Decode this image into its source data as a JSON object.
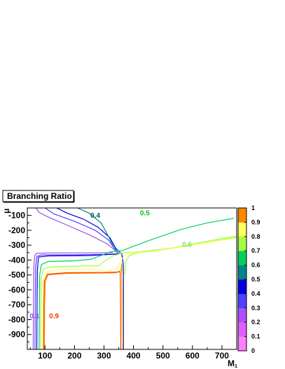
{
  "chart_data": {
    "type": "contour",
    "title": "Branching Ratio",
    "xlabel": "M",
    "xlabel_sub": "1",
    "ylabel": "μ",
    "xlim": [
      40,
      750
    ],
    "ylim": [
      -1000,
      -50
    ],
    "xticks": [
      100,
      200,
      300,
      400,
      500,
      600,
      700
    ],
    "yticks": [
      -100,
      -200,
      -300,
      -400,
      -500,
      -600,
      -700,
      -800,
      -900
    ],
    "zlim": [
      0,
      1
    ],
    "color_scale": [
      {
        "value": 0.0,
        "color": "#ff80ff"
      },
      {
        "value": 0.1,
        "color": "#e060ff"
      },
      {
        "value": 0.2,
        "color": "#b050ff"
      },
      {
        "value": 0.3,
        "color": "#5040ff"
      },
      {
        "value": 0.4,
        "color": "#0000e0"
      },
      {
        "value": 0.5,
        "color": "#008888"
      },
      {
        "value": 0.6,
        "color": "#00d060"
      },
      {
        "value": 0.7,
        "color": "#a0ff40"
      },
      {
        "value": 0.8,
        "color": "#ffff60"
      },
      {
        "value": 0.9,
        "color": "#ff8800"
      }
    ],
    "scale_labels": [
      "0",
      "0.1",
      "0.2",
      "0.3",
      "0.4",
      "0.5",
      "0.6",
      "0.7",
      "0.8",
      "0.9",
      "1"
    ],
    "contours": [
      {
        "level": "0.1",
        "color": "#a050e0",
        "points": [
          [
            60,
            -1000
          ],
          [
            61,
            -700
          ],
          [
            62,
            -450
          ],
          [
            65,
            -370
          ],
          [
            72,
            -355
          ],
          [
            110,
            -352
          ],
          [
            180,
            -352
          ],
          [
            260,
            -352
          ],
          [
            330,
            -350
          ]
        ]
      },
      {
        "level": "0.1b",
        "color": "#a050e0",
        "points": [
          [
            70,
            -50
          ],
          [
            80,
            -80
          ],
          [
            110,
            -110
          ],
          [
            180,
            -170
          ],
          [
            250,
            -230
          ],
          [
            310,
            -290
          ],
          [
            335,
            -330
          ],
          [
            345,
            -350
          ]
        ]
      },
      {
        "level": "0.3",
        "color": "#5040ff",
        "points": [
          [
            100,
            -50
          ],
          [
            130,
            -90
          ],
          [
            200,
            -140
          ],
          [
            270,
            -200
          ],
          [
            315,
            -265
          ],
          [
            338,
            -330
          ],
          [
            350,
            -355
          ]
        ]
      },
      {
        "level": "0.3b",
        "color": "#5040ff",
        "points": [
          [
            66,
            -1000
          ],
          [
            67,
            -700
          ],
          [
            68,
            -460
          ],
          [
            72,
            -375
          ],
          [
            90,
            -365
          ],
          [
            200,
            -365
          ],
          [
            300,
            -362
          ],
          [
            350,
            -358
          ]
        ]
      },
      {
        "level": "0.4",
        "color": "#0000e0",
        "points": [
          [
            140,
            -50
          ],
          [
            175,
            -85
          ],
          [
            230,
            -125
          ],
          [
            280,
            -180
          ],
          [
            320,
            -250
          ],
          [
            340,
            -320
          ],
          [
            355,
            -350
          ]
        ]
      },
      {
        "level": "0.4b",
        "color": "#0000e0",
        "points": [
          [
            72,
            -1000
          ],
          [
            73,
            -700
          ],
          [
            74,
            -470
          ],
          [
            78,
            -380
          ],
          [
            110,
            -372
          ],
          [
            250,
            -370
          ],
          [
            340,
            -360
          ],
          [
            360,
            -355
          ],
          [
            365,
            -420
          ],
          [
            366,
            -520
          ],
          [
            366,
            -1000
          ]
        ]
      },
      {
        "level": "0.5",
        "color": "#008888",
        "points": [
          [
            210,
            -50
          ],
          [
            250,
            -85
          ],
          [
            290,
            -150
          ],
          [
            315,
            -240
          ],
          [
            335,
            -320
          ],
          [
            355,
            -345
          ]
        ]
      },
      {
        "level": "0.6",
        "color": "#00d060",
        "points": [
          [
            80,
            -1000
          ],
          [
            81,
            -700
          ],
          [
            82,
            -500
          ],
          [
            88,
            -430
          ],
          [
            110,
            -410
          ],
          [
            200,
            -405
          ],
          [
            255,
            -395
          ],
          [
            290,
            -370
          ],
          [
            320,
            -345
          ],
          [
            360,
            -338
          ],
          [
            450,
            -270
          ],
          [
            560,
            -195
          ],
          [
            650,
            -150
          ],
          [
            740,
            -120
          ]
        ]
      },
      {
        "level": "0.7",
        "color": "#a0ff40",
        "points": [
          [
            85,
            -1000
          ],
          [
            86,
            -700
          ],
          [
            88,
            -520
          ],
          [
            95,
            -460
          ],
          [
            120,
            -445
          ],
          [
            230,
            -440
          ],
          [
            280,
            -440
          ],
          [
            300,
            -410
          ],
          [
            330,
            -372
          ],
          [
            365,
            -350
          ],
          [
            420,
            -345
          ],
          [
            530,
            -320
          ],
          [
            620,
            -285
          ],
          [
            700,
            -255
          ],
          [
            750,
            -240
          ]
        ]
      },
      {
        "level": "0.7b",
        "color": "#a0ff40",
        "points": [
          [
            370,
            -500
          ],
          [
            372,
            -420
          ],
          [
            385,
            -370
          ],
          [
            420,
            -350
          ],
          [
            500,
            -330
          ],
          [
            600,
            -300
          ],
          [
            750,
            -245
          ]
        ]
      },
      {
        "level": "0.8",
        "color": "#ffff60",
        "points": [
          [
            92,
            -1000
          ],
          [
            93,
            -700
          ],
          [
            95,
            -530
          ],
          [
            105,
            -480
          ],
          [
            150,
            -465
          ],
          [
            260,
            -465
          ],
          [
            320,
            -470
          ],
          [
            345,
            -455
          ],
          [
            362,
            -390
          ],
          [
            375,
            -360
          ],
          [
            470,
            -340
          ],
          [
            600,
            -300
          ],
          [
            750,
            -250
          ]
        ]
      },
      {
        "level": "0.9",
        "color": "#ff8800",
        "points": [
          [
            98,
            -1000
          ],
          [
            99,
            -700
          ],
          [
            101,
            -545
          ],
          [
            110,
            -500
          ],
          [
            170,
            -490
          ],
          [
            260,
            -488
          ],
          [
            340,
            -486
          ],
          [
            358,
            -470
          ],
          [
            360,
            -420
          ],
          [
            362,
            -1000
          ]
        ]
      },
      {
        "level": "0.9b",
        "color": "#ff4400",
        "points": [
          [
            95,
            -1000
          ],
          [
            96,
            -700
          ],
          [
            98,
            -540
          ],
          [
            108,
            -495
          ],
          [
            170,
            -485
          ],
          [
            300,
            -483
          ],
          [
            355,
            -480
          ]
        ]
      },
      {
        "level": "vert1",
        "color": "#ff4400",
        "points": [
          [
            355,
            -480
          ],
          [
            356,
            -700
          ],
          [
            357,
            -1000
          ]
        ]
      },
      {
        "level": "vert2",
        "color": "#ffff60",
        "points": [
          [
            362,
            -470
          ],
          [
            363,
            -700
          ],
          [
            363,
            -1000
          ]
        ]
      }
    ],
    "labels": [
      {
        "text": "0.4",
        "x": 254,
        "y": -115,
        "color": "#005566"
      },
      {
        "text": "0.5",
        "x": 422,
        "y": -100,
        "color": "#00c000"
      },
      {
        "text": "0.6",
        "x": 565,
        "y": -310,
        "color": "#88dd66"
      },
      {
        "text": "0.1",
        "x": 48,
        "y": -790,
        "color": "#a050e0"
      },
      {
        "text": "0.9",
        "x": 114,
        "y": -790,
        "color": "#ff3300"
      }
    ]
  }
}
